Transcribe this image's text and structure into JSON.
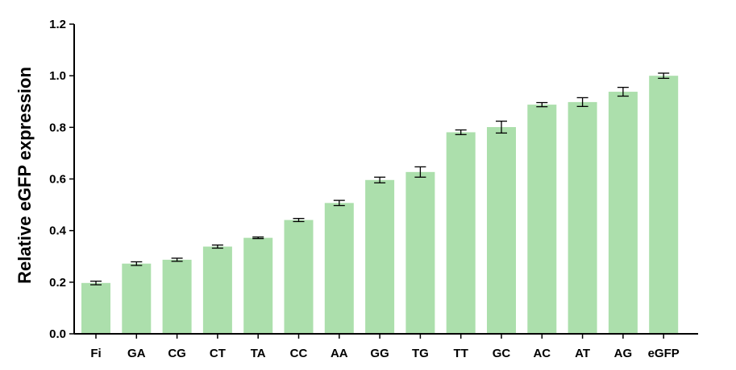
{
  "chart_data": {
    "type": "bar",
    "categories": [
      "Fi",
      "GA",
      "CG",
      "CT",
      "TA",
      "CC",
      "AA",
      "GG",
      "TG",
      "TT",
      "GC",
      "AC",
      "AT",
      "AG",
      "eGFP"
    ],
    "values": [
      0.197,
      0.272,
      0.287,
      0.338,
      0.372,
      0.441,
      0.507,
      0.596,
      0.627,
      0.781,
      0.801,
      0.888,
      0.898,
      0.938,
      1.0
    ],
    "errors": [
      0.007,
      0.007,
      0.006,
      0.006,
      0.003,
      0.006,
      0.01,
      0.011,
      0.02,
      0.009,
      0.023,
      0.008,
      0.017,
      0.017,
      0.01
    ],
    "title": "",
    "xlabel": "",
    "ylabel": "Relative eGFP expression",
    "ylim": [
      0,
      1.2
    ],
    "yticks": [
      "0.0",
      "0.2",
      "0.4",
      "0.6",
      "0.8",
      "1.0",
      "1.2"
    ],
    "grid": false,
    "bar_color": "#acdfac",
    "error_color": "#000000"
  }
}
